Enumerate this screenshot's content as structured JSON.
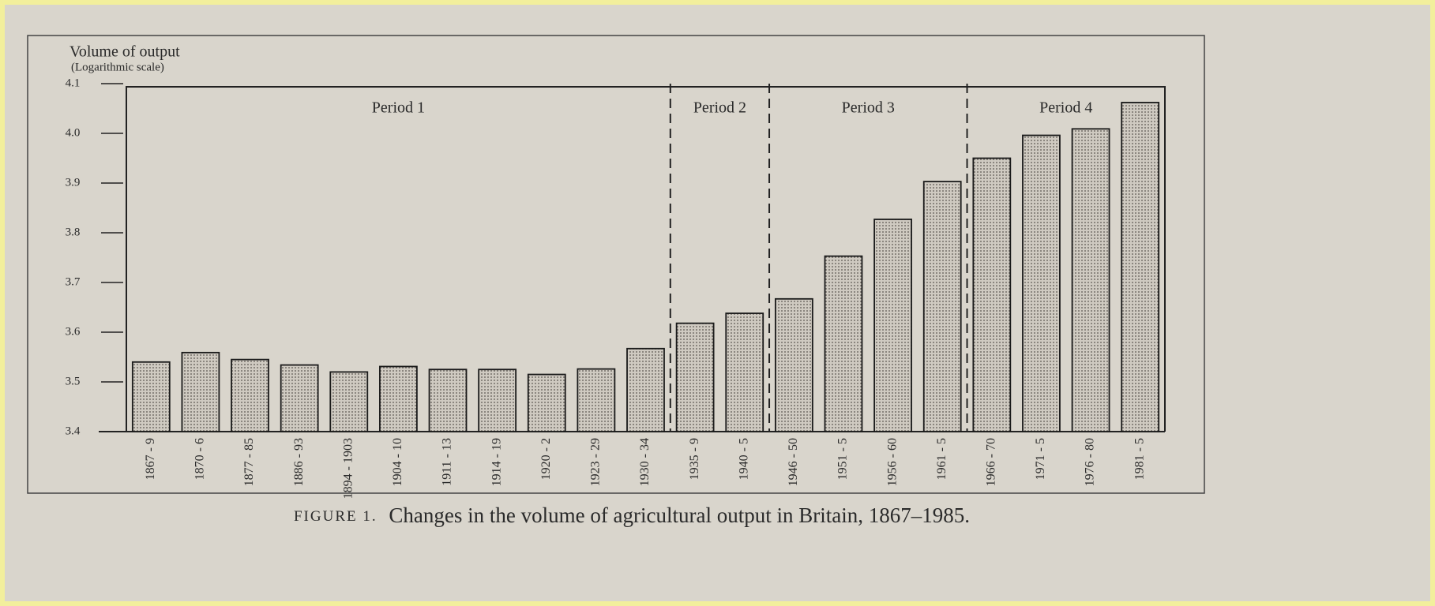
{
  "chart_data": {
    "type": "bar",
    "y_axis_label": "Volume of output",
    "y_axis_note": "(Logarithmic scale)",
    "caption_prefix": "FIGURE 1.",
    "caption": "Changes in the volume of agricultural output in Britain, 1867–1985.",
    "categories": [
      "1867 - 9",
      "1870 - 6",
      "1877 - 85",
      "1886 - 93",
      "1894 - 1903",
      "1904 - 10",
      "1911 - 13",
      "1914 - 19",
      "1920 - 2",
      "1923 - 29",
      "1930 - 34",
      "1935 - 9",
      "1940 - 5",
      "1946 - 50",
      "1951 - 5",
      "1956 - 60",
      "1961 - 5",
      "1966 - 70",
      "1971 - 5",
      "1976 - 80",
      "1981 - 5"
    ],
    "values": [
      3.54,
      3.559,
      3.545,
      3.534,
      3.52,
      3.531,
      3.525,
      3.525,
      3.515,
      3.526,
      3.567,
      3.618,
      3.638,
      3.667,
      3.753,
      3.827,
      3.903,
      3.95,
      3.996,
      4.009,
      4.062
    ],
    "color": "#cfcac1",
    "periods": [
      {
        "label": "Period 1",
        "from": "1867 - 9",
        "to": "1930 - 34"
      },
      {
        "label": "Period 2",
        "from": "1935 - 9",
        "to": "1940 - 5"
      },
      {
        "label": "Period 3",
        "from": "1946 - 50",
        "to": "1961 - 5"
      },
      {
        "label": "Period 4",
        "from": "1966 - 70",
        "to": "1981 - 5"
      }
    ],
    "ylim": [
      3.4,
      4.1
    ],
    "yticks": [
      3.4,
      3.5,
      3.6,
      3.7,
      3.8,
      3.9,
      {
        "value": 4,
        "label": "4.0"
      },
      4.1
    ],
    "grid": false
  }
}
